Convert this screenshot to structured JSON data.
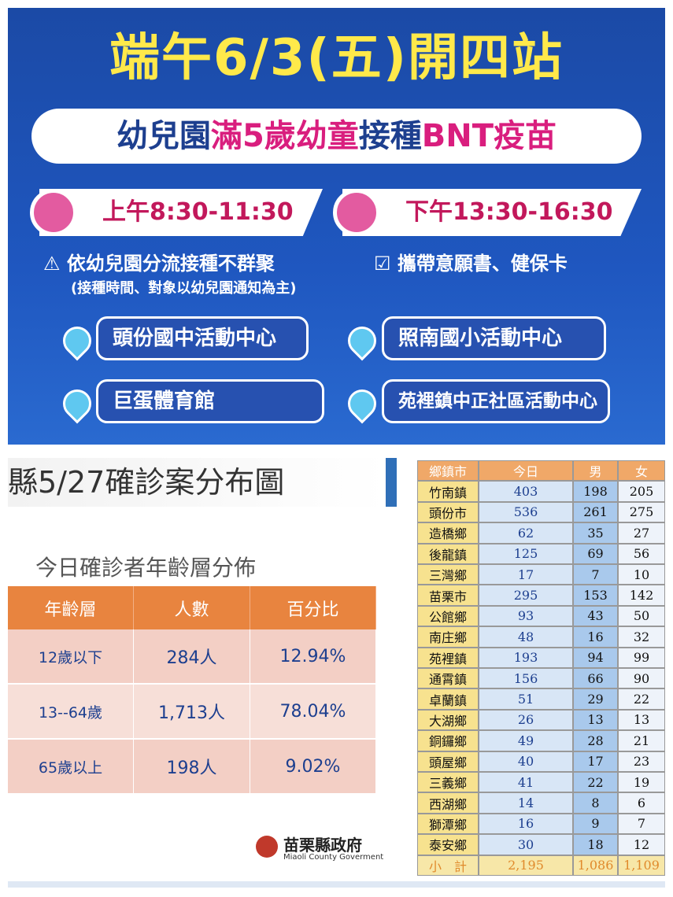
{
  "poster": {
    "title": "端午6/3(五)開四站",
    "subtitle": [
      "幼兒園",
      "滿5歲幼童",
      "接種",
      "BNT疫苗"
    ],
    "times": [
      "上午8:30-11:30",
      "下午13:30-16:30"
    ],
    "note": "依幼兒園分流接種不群聚",
    "note_sub": "(接種時間、對象以幼兒園通知為主)",
    "bring": "攜帶意願書、健保卡",
    "locations": [
      "頭份國中活動中心",
      "照南國小活動中心",
      "巨蛋體育館",
      "苑裡鎮中正社區活動中心"
    ]
  },
  "report": {
    "title": "縣5/27確診案分布圖",
    "age_title": "今日確診者年齡層分佈",
    "age_table": {
      "header": [
        "年齡層",
        "人數",
        "百分比"
      ],
      "rows": [
        [
          "12歲以下",
          "284人",
          "12.94%"
        ],
        [
          "13--64歲",
          "1,713人",
          "78.04%"
        ],
        [
          "65歲以上",
          "198人",
          "9.02%"
        ]
      ]
    },
    "logo": {
      "name": "苗栗縣政府",
      "english": "Miaoli County Goverment"
    }
  },
  "town_table": {
    "header": [
      "鄉鎮市",
      "今日",
      "男",
      "女"
    ],
    "rows": [
      [
        "竹南鎮",
        403,
        198,
        205
      ],
      [
        "頭份市",
        536,
        261,
        275
      ],
      [
        "造橋鄉",
        62,
        35,
        27
      ],
      [
        "後龍鎮",
        125,
        69,
        56
      ],
      [
        "三灣鄉",
        17,
        7,
        10
      ],
      [
        "苗栗市",
        295,
        153,
        142
      ],
      [
        "公館鄉",
        93,
        43,
        50
      ],
      [
        "南庄鄉",
        48,
        16,
        32
      ],
      [
        "苑裡鎮",
        193,
        94,
        99
      ],
      [
        "通霄鎮",
        156,
        66,
        90
      ],
      [
        "卓蘭鎮",
        51,
        29,
        22
      ],
      [
        "大湖鄉",
        26,
        13,
        13
      ],
      [
        "銅鑼鄉",
        49,
        28,
        21
      ],
      [
        "頭屋鄉",
        40,
        17,
        23
      ],
      [
        "三義鄉",
        41,
        22,
        19
      ],
      [
        "西湖鄉",
        14,
        8,
        6
      ],
      [
        "獅潭鄉",
        16,
        9,
        7
      ],
      [
        "泰安鄉",
        30,
        18,
        12
      ]
    ],
    "total": [
      "小　計",
      "2,195",
      "1,086",
      "1,109"
    ]
  }
}
